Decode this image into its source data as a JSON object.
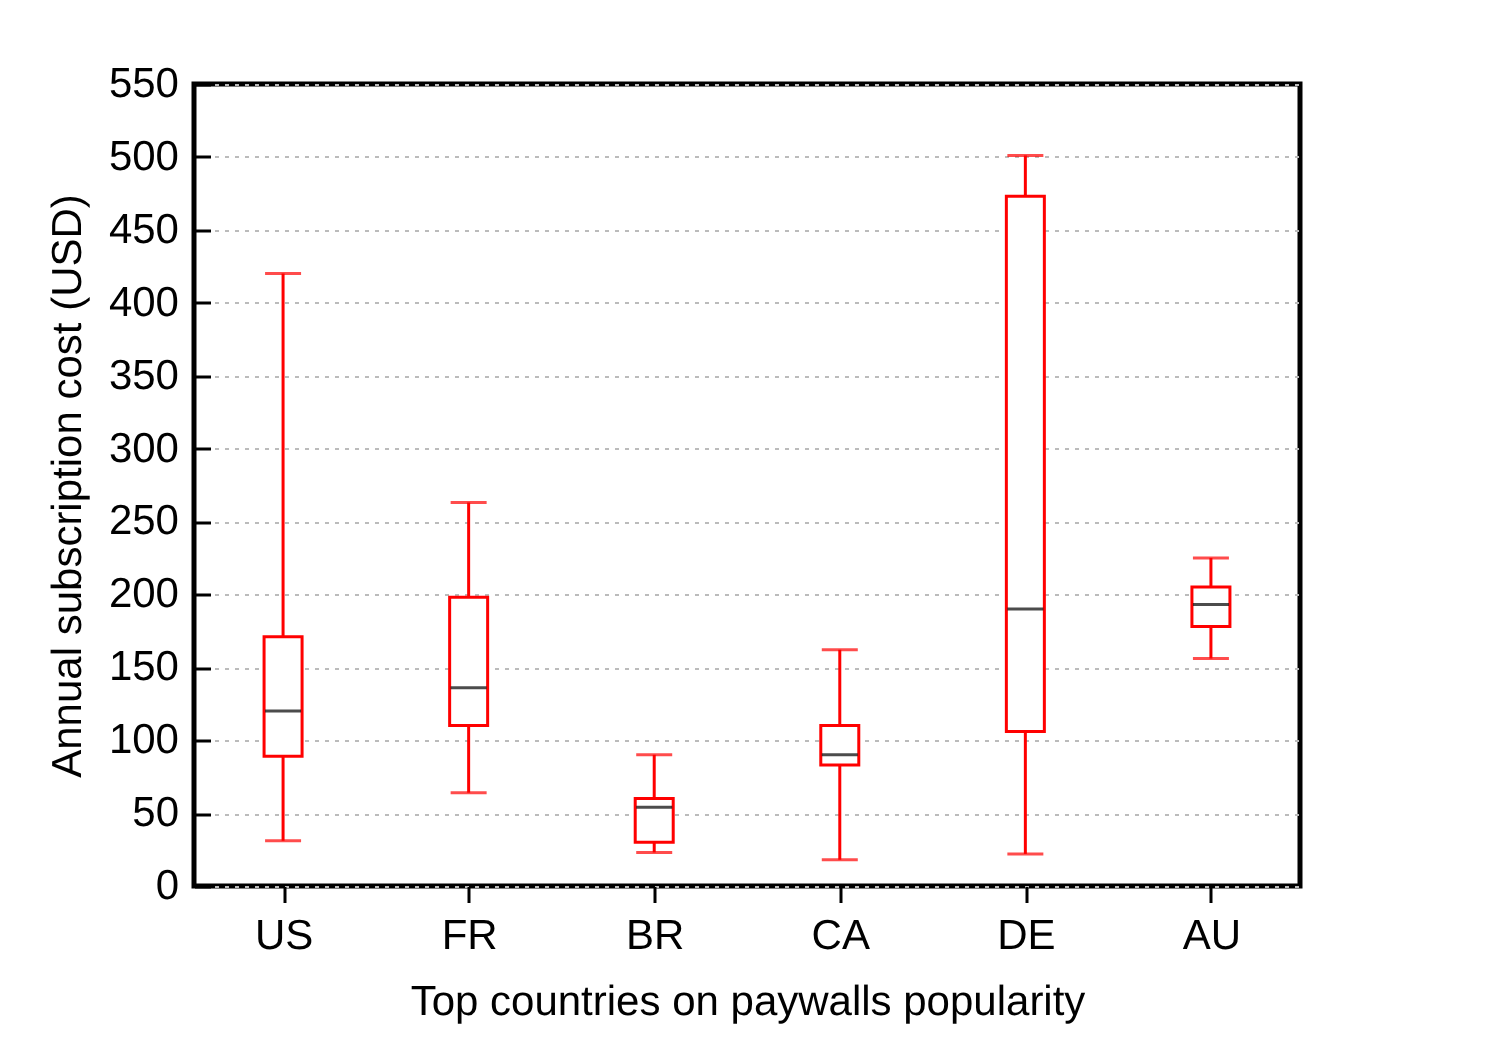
{
  "chart_data": {
    "type": "box",
    "xlabel": "Top countries on paywalls popularity",
    "ylabel": "Annual subscription cost (USD)",
    "categories": [
      "US",
      "FR",
      "BR",
      "CA",
      "DE",
      "AU"
    ],
    "series": [
      {
        "color": "#ff0000",
        "boxes": [
          {
            "low": 31,
            "q1": 89,
            "median": 120,
            "q3": 171,
            "high": 420
          },
          {
            "low": 64,
            "q1": 110,
            "median": 136,
            "q3": 198,
            "high": 263
          },
          {
            "low": 23,
            "q1": 30,
            "median": 54,
            "q3": 60,
            "high": 90
          },
          {
            "low": 18,
            "q1": 83,
            "median": 90,
            "q3": 110,
            "high": 162
          },
          {
            "low": 22,
            "q1": 106,
            "median": 190,
            "q3": 473,
            "high": 501
          },
          {
            "low": 156,
            "q1": 178,
            "median": 193,
            "q3": 205,
            "high": 225
          }
        ]
      }
    ],
    "ylim": [
      0,
      550
    ],
    "yticks": [
      0,
      50,
      100,
      150,
      200,
      250,
      300,
      350,
      400,
      450,
      500,
      550
    ],
    "grid": "y"
  }
}
